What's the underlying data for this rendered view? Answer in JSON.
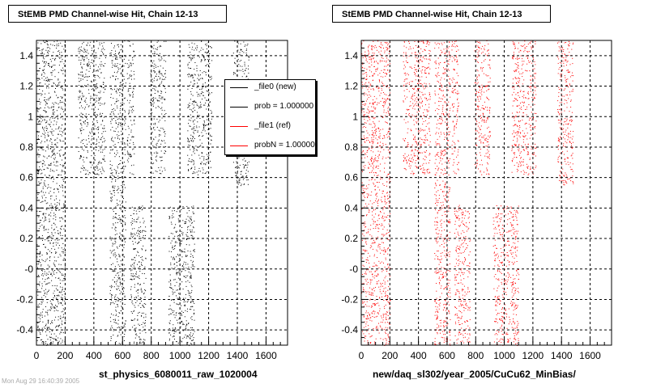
{
  "chart_data": [
    {
      "type": "scatter",
      "title": "StEMB PMD Channel-wise Hit, Chain 12-13",
      "xlabel": "st_physics_6080011_raw_1020004",
      "ylabel": "",
      "xlim": [
        0,
        1750
      ],
      "ylim": [
        -0.5,
        1.5
      ],
      "x_ticks": [
        0,
        200,
        400,
        600,
        800,
        1000,
        1200,
        1400,
        1600
      ],
      "y_ticks": [
        -0.4,
        -0.2,
        0.0,
        0.2,
        0.4,
        0.6,
        0.8,
        1.0,
        1.2,
        1.4
      ],
      "y_tick_labels": [
        "-0.4",
        "-0.2",
        "-0",
        "0.2",
        "0.4",
        "0.6",
        "0.8",
        "1",
        "1.2",
        "1.4"
      ],
      "grid": true,
      "marker_color": "#000000",
      "series": [
        {
          "point_density_bands": [
            {
              "x": [
                0,
                200
              ],
              "y": [
                -0.5,
                1.5
              ]
            },
            {
              "x": [
                290,
                480
              ],
              "y": [
                0.62,
                1.5
              ]
            },
            {
              "x": [
                510,
                620
              ],
              "y": [
                -0.5,
                1.5
              ]
            },
            {
              "x": [
                630,
                680
              ],
              "y": [
                0.62,
                1.5
              ]
            },
            {
              "x": [
                650,
                760
              ],
              "y": [
                -0.5,
                0.42
              ]
            },
            {
              "x": [
                790,
                900
              ],
              "y": [
                0.62,
                1.5
              ]
            },
            {
              "x": [
                920,
                1100
              ],
              "y": [
                -0.5,
                0.42
              ]
            },
            {
              "x": [
                1050,
                1220
              ],
              "y": [
                0.62,
                1.5
              ]
            },
            {
              "x": [
                1370,
                1480
              ],
              "y": [
                0.55,
                1.5
              ]
            }
          ]
        }
      ],
      "legend": {
        "placement": "top-right",
        "entries": [
          {
            "label": "_file0 (new)",
            "color": "#000000"
          },
          {
            "label": "prob = 1.000000",
            "color": "#000000"
          },
          {
            "label": "_file1 (ref)",
            "color": "#ff0000"
          },
          {
            "label": "probN = 1.000000",
            "color": "#ff0000"
          }
        ]
      }
    },
    {
      "type": "scatter",
      "title": "StEMB PMD Channel-wise Hit, Chain 12-13",
      "xlabel": "new/daq_sl302/year_2005/CuCu62_MinBias/",
      "ylabel": "",
      "xlim": [
        0,
        1750
      ],
      "ylim": [
        -0.5,
        1.5
      ],
      "x_ticks": [
        0,
        200,
        400,
        600,
        800,
        1000,
        1200,
        1400,
        1600
      ],
      "y_ticks": [
        -0.4,
        -0.2,
        0.0,
        0.2,
        0.4,
        0.6,
        0.8,
        1.0,
        1.2,
        1.4
      ],
      "y_tick_labels": [
        "-0.4",
        "-0.2",
        "-0",
        "0.2",
        "0.4",
        "0.6",
        "0.8",
        "1",
        "1.2",
        "1.4"
      ],
      "grid": true,
      "marker_color": "#ff0000",
      "series": [
        {
          "point_density_bands": [
            {
              "x": [
                0,
                200
              ],
              "y": [
                -0.5,
                1.5
              ]
            },
            {
              "x": [
                290,
                480
              ],
              "y": [
                0.62,
                1.5
              ]
            },
            {
              "x": [
                510,
                620
              ],
              "y": [
                -0.5,
                1.5
              ]
            },
            {
              "x": [
                630,
                680
              ],
              "y": [
                0.62,
                1.5
              ]
            },
            {
              "x": [
                650,
                760
              ],
              "y": [
                -0.5,
                0.42
              ]
            },
            {
              "x": [
                790,
                900
              ],
              "y": [
                0.62,
                1.5
              ]
            },
            {
              "x": [
                920,
                1100
              ],
              "y": [
                -0.5,
                0.42
              ]
            },
            {
              "x": [
                1050,
                1220
              ],
              "y": [
                0.62,
                1.5
              ]
            },
            {
              "x": [
                1370,
                1480
              ],
              "y": [
                0.55,
                1.5
              ]
            }
          ]
        }
      ]
    }
  ],
  "footer_text": "Mon Aug 29 16:40:39 2005"
}
